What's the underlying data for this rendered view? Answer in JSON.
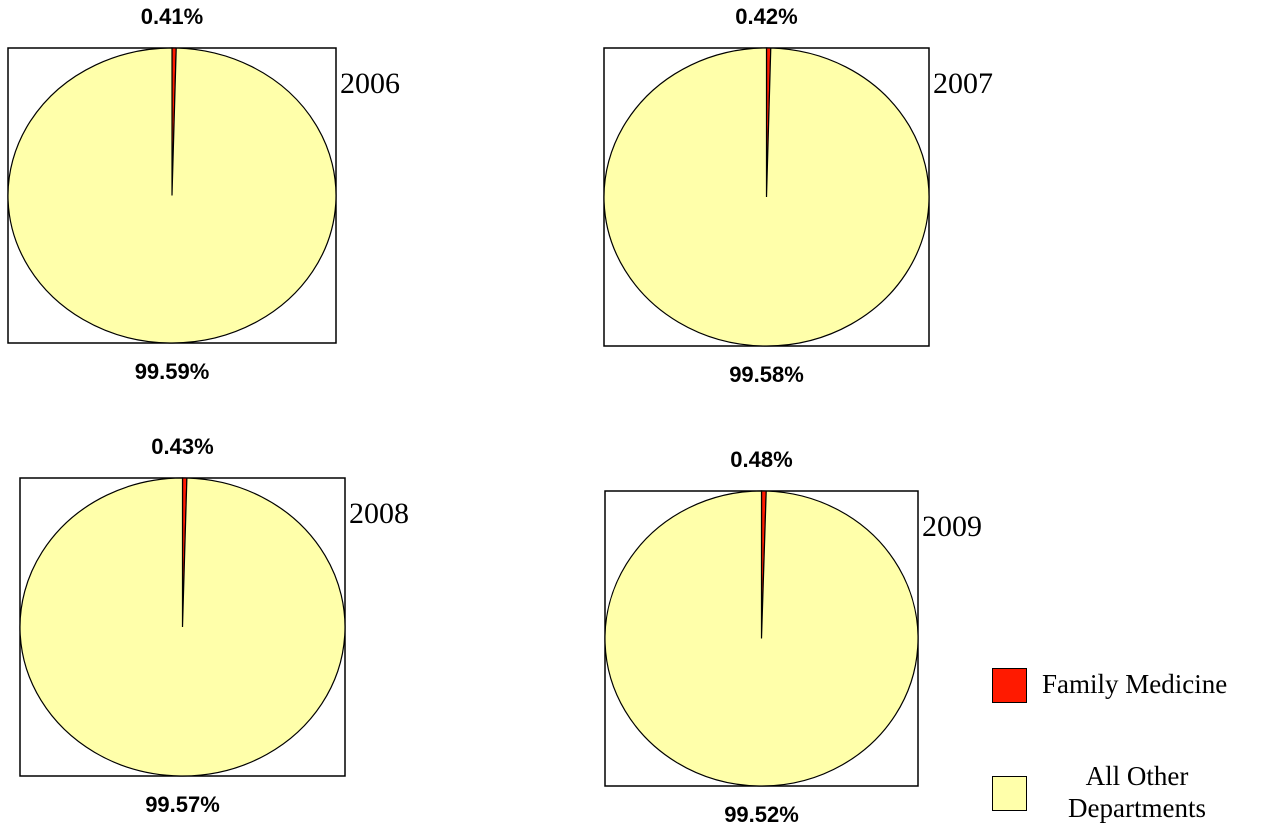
{
  "chart_data": [
    {
      "type": "pie",
      "title": "2006",
      "values": [
        0.41,
        99.59
      ],
      "value_labels": [
        "0.41%",
        "99.59%"
      ]
    },
    {
      "type": "pie",
      "title": "2007",
      "values": [
        0.42,
        99.58
      ],
      "value_labels": [
        "0.42%",
        "99.58%"
      ]
    },
    {
      "type": "pie",
      "title": "2008",
      "values": [
        0.43,
        99.57
      ],
      "value_labels": [
        "0.43%",
        "99.57%"
      ]
    },
    {
      "type": "pie",
      "title": "2009",
      "values": [
        0.48,
        99.52
      ],
      "value_labels": [
        "0.48%",
        "99.52%"
      ]
    }
  ],
  "legend": {
    "labels": [
      "Family Medicine",
      "All Other Departments"
    ],
    "colors": [
      "#ff1a00",
      "#ffffaa"
    ]
  }
}
